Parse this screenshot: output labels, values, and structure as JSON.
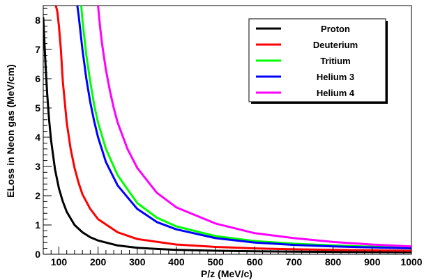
{
  "chart_data": {
    "type": "line",
    "xlabel": "P/z (MeV/c)",
    "ylabel": "ELoss in Neon gas (MeV/cm)",
    "xlim": [
      60,
      1000
    ],
    "ylim": [
      0,
      8.5
    ],
    "x_ticks": [
      100,
      200,
      300,
      400,
      500,
      600,
      700,
      800,
      900,
      1000
    ],
    "y_ticks": [
      0,
      1,
      2,
      3,
      4,
      5,
      6,
      7,
      8
    ],
    "grid": false,
    "legend_position": "top-right",
    "series": [
      {
        "name": "Proton",
        "color": "#000000",
        "x": [
          60,
          65,
          70,
          75,
          80,
          90,
          100,
          110,
          120,
          140,
          160,
          180,
          200,
          250,
          300,
          350,
          400,
          500,
          600,
          700,
          800,
          900,
          1000
        ],
        "y": [
          8.1,
          6.7,
          5.5,
          4.6,
          3.9,
          2.9,
          2.25,
          1.8,
          1.45,
          1.0,
          0.75,
          0.58,
          0.47,
          0.3,
          0.22,
          0.18,
          0.15,
          0.12,
          0.1,
          0.09,
          0.08,
          0.075,
          0.07
        ]
      },
      {
        "name": "Deuterium",
        "color": "#ff0000",
        "x": [
          92,
          96,
          100,
          105,
          110,
          120,
          130,
          140,
          150,
          160,
          180,
          200,
          250,
          300,
          400,
          500,
          600,
          700,
          800,
          900,
          1000
        ],
        "y": [
          8.5,
          8.3,
          7.8,
          7.0,
          5.9,
          4.5,
          3.6,
          2.95,
          2.45,
          2.05,
          1.55,
          1.2,
          0.75,
          0.52,
          0.33,
          0.25,
          0.2,
          0.17,
          0.15,
          0.13,
          0.12
        ]
      },
      {
        "name": "Tritium",
        "color": "#00ff00",
        "x": [
          157,
          160,
          165,
          170,
          180,
          190,
          200,
          220,
          250,
          300,
          350,
          400,
          500,
          600,
          700,
          800,
          900,
          1000
        ],
        "y": [
          8.5,
          8.0,
          7.4,
          6.8,
          5.9,
          5.1,
          4.5,
          3.6,
          2.7,
          1.75,
          1.25,
          0.95,
          0.62,
          0.45,
          0.36,
          0.3,
          0.26,
          0.22
        ]
      },
      {
        "name": "Helium 3",
        "color": "#0000ff",
        "x": [
          147,
          150,
          155,
          160,
          170,
          180,
          190,
          200,
          220,
          250,
          300,
          350,
          400,
          500,
          600,
          700,
          800,
          900,
          1000
        ],
        "y": [
          8.5,
          8.2,
          7.6,
          7.0,
          6.0,
          5.2,
          4.55,
          4.0,
          3.15,
          2.35,
          1.55,
          1.1,
          0.85,
          0.55,
          0.4,
          0.32,
          0.27,
          0.23,
          0.2
        ]
      },
      {
        "name": "Helium 4",
        "color": "#ff00ff",
        "x": [
          200,
          205,
          210,
          220,
          230,
          240,
          250,
          275,
          300,
          350,
          400,
          500,
          600,
          700,
          800,
          900,
          1000
        ],
        "y": [
          8.5,
          7.8,
          7.2,
          6.3,
          5.6,
          5.0,
          4.5,
          3.6,
          2.95,
          2.1,
          1.6,
          1.05,
          0.72,
          0.55,
          0.42,
          0.33,
          0.27
        ]
      }
    ]
  }
}
